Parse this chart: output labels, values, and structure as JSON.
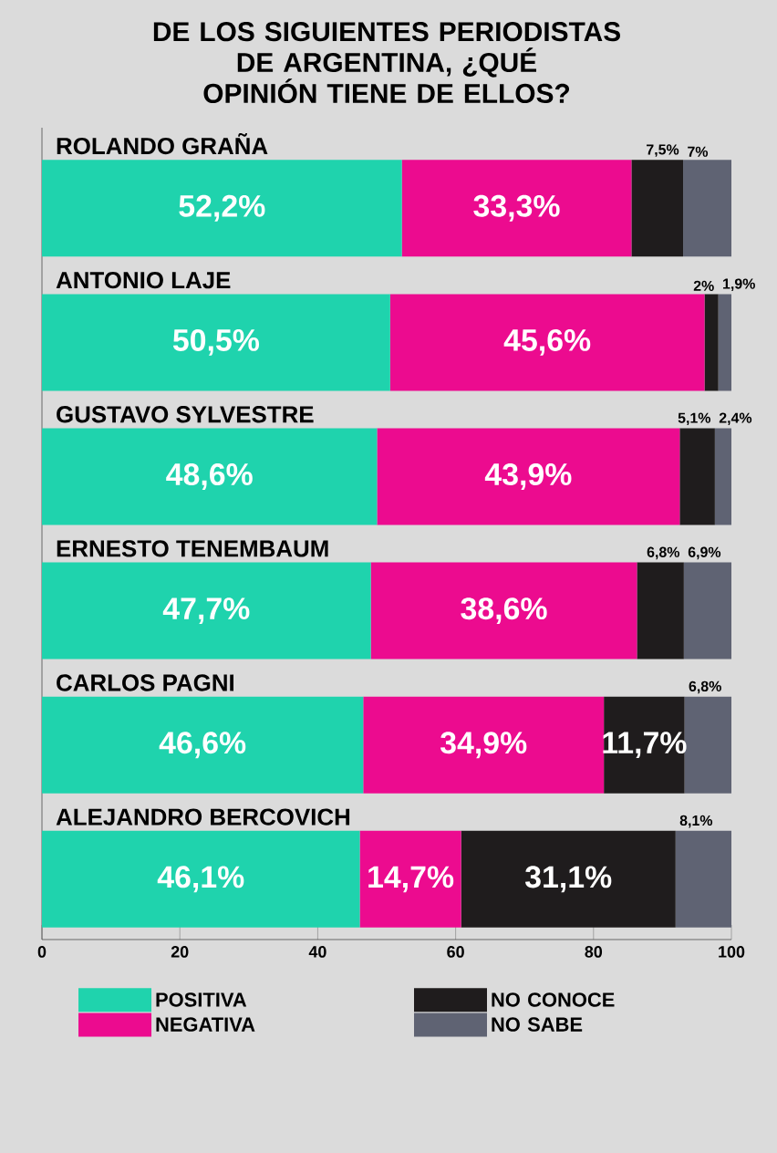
{
  "chart_data": {
    "type": "bar",
    "orientation": "horizontal",
    "stacked": true,
    "title": "DE LOS SIGUIENTES PERIODISTAS DE ARGENTINA, ¿QUÉ OPINIÓN TIENE DE ELLOS?",
    "categories": [
      "ROLANDO GRAÑA",
      "ANTONIO LAJE",
      "GUSTAVO SYLVESTRE",
      "ERNESTO TENEMBAUM",
      "CARLOS PAGNI",
      "ALEJANDRO BERCOVICH"
    ],
    "series": [
      {
        "name": "POSITIVA",
        "color": "#1fd3ad",
        "values": [
          52.2,
          50.5,
          48.6,
          47.7,
          46.6,
          46.1
        ],
        "value_labels": [
          "52,2%",
          "50,5%",
          "48,6%",
          "47,7%",
          "46,6%",
          "46,1%"
        ]
      },
      {
        "name": "NEGATIVA",
        "color": "#ec0b8f",
        "values": [
          33.3,
          45.6,
          43.9,
          38.6,
          34.9,
          14.7
        ],
        "value_labels": [
          "33,3%",
          "45,6%",
          "43,9%",
          "38,6%",
          "34,9%",
          "14,7%"
        ]
      },
      {
        "name": "NO CONOCE",
        "color": "#1f1c1d",
        "values": [
          7.5,
          2,
          5.1,
          6.8,
          11.7,
          31.1
        ],
        "value_labels": [
          "7,5%",
          "2%",
          "5,1%",
          "6,8%",
          "11,7%",
          "31,1%"
        ]
      },
      {
        "name": "NO SABE",
        "color": "#5f6373",
        "values": [
          7,
          1.9,
          2.4,
          6.9,
          6.8,
          8.1
        ],
        "value_labels": [
          "7%",
          "1,9%",
          "2,4%",
          "6,9%",
          "6,8%",
          "8,1%"
        ]
      }
    ],
    "xlim": [
      0,
      100
    ],
    "xticks": [
      0,
      20,
      40,
      60,
      80,
      100
    ],
    "legend": "bottom"
  }
}
